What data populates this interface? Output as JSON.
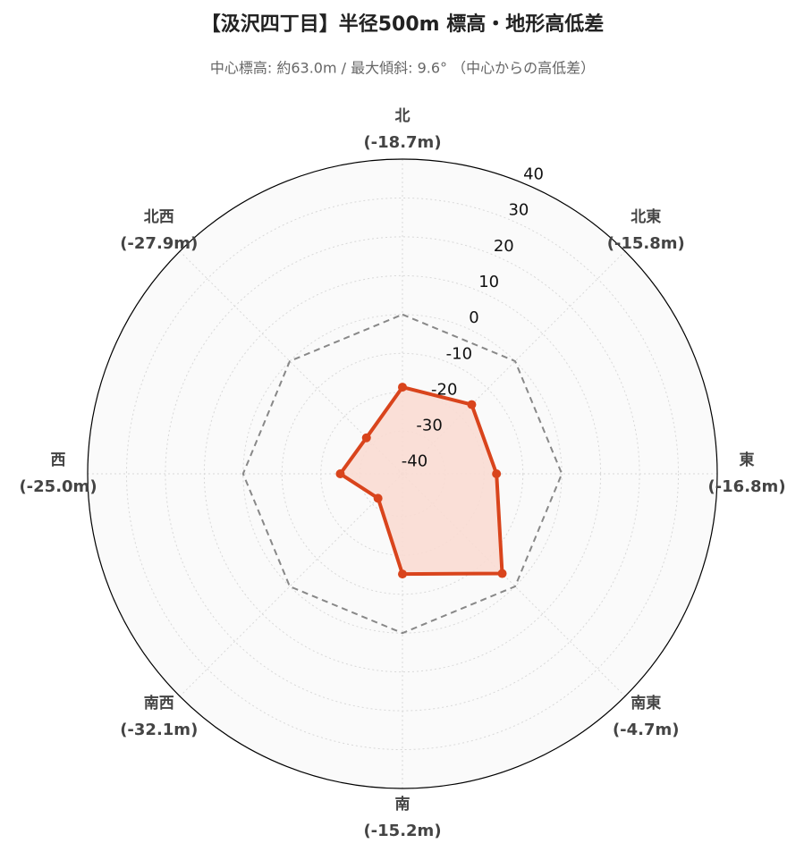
{
  "chart_data": {
    "type": "radar",
    "title": "【汲沢四丁目】半径500m 標高・地形高低差",
    "subtitle": "中心標高: 約63.0m / 最大傾斜: 9.6° （中心からの高低差）",
    "categories": [
      "北",
      "北東",
      "東",
      "南東",
      "南",
      "南西",
      "西",
      "北西"
    ],
    "series": [
      {
        "color": "#d9441c",
        "fill": "#fadcd3",
        "values": [
          -18.7,
          -15.8,
          -16.8,
          -4.7,
          -15.2,
          -32.1,
          -25.0,
          -27.9
        ],
        "value_labels": [
          "(-18.7m)",
          "(-15.8m)",
          "(-16.8m)",
          "(-4.7m)",
          "(-15.2m)",
          "(-32.1m)",
          "(-25.0m)",
          "(-27.9m)"
        ]
      },
      {
        "color": "#888888",
        "dash": true,
        "values": [
          0,
          0,
          0,
          0,
          0,
          0,
          0,
          0
        ]
      }
    ],
    "ylim": [
      -41,
      40
    ],
    "yticks": [
      -40,
      -30,
      -20,
      -10,
      0,
      10,
      20,
      30,
      40
    ],
    "grid": true
  }
}
